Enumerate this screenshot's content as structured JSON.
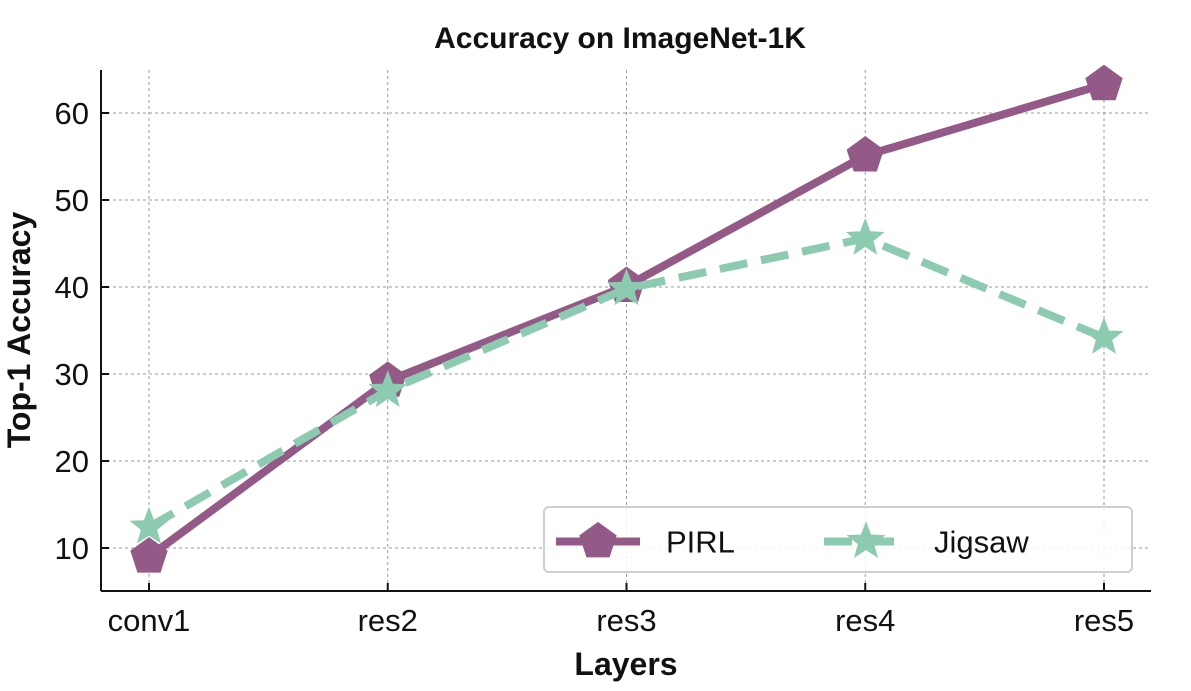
{
  "chart_data": {
    "type": "line",
    "title": "Accuracy on ImageNet-1K",
    "xlabel": "Layers",
    "ylabel": "Top-1 Accuracy",
    "categories": [
      "conv1",
      "res2",
      "res3",
      "res4",
      "res5"
    ],
    "yticks": [
      10,
      20,
      30,
      40,
      50,
      60
    ],
    "ylim": [
      5,
      65
    ],
    "grid": true,
    "legend_position": "lower-right",
    "series": [
      {
        "name": "PIRL",
        "values": [
          9.0,
          29.2,
          40.1,
          55.1,
          63.3
        ],
        "color": "#945a87",
        "marker": "pentagon",
        "linestyle": "solid"
      },
      {
        "name": "Jigsaw",
        "values": [
          12.4,
          28.1,
          39.8,
          45.6,
          34.2
        ],
        "color": "#8ccbaf",
        "marker": "star",
        "linestyle": "dashed"
      }
    ]
  }
}
